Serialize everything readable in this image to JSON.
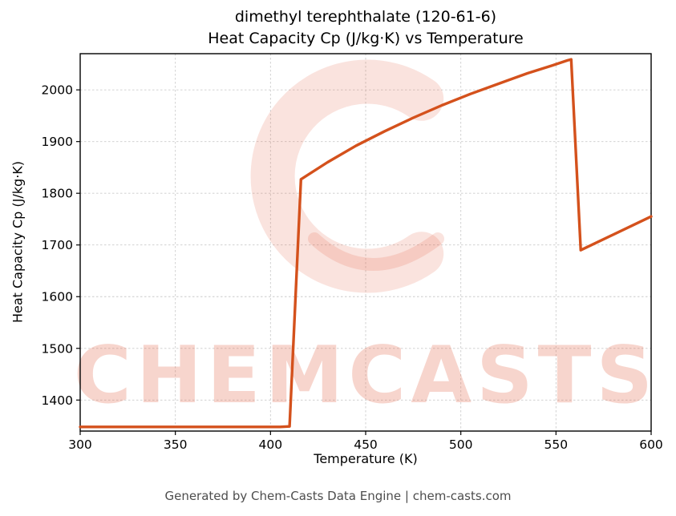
{
  "title": {
    "line1": "dimethyl terephthalate (120-61-6)",
    "line2": "Heat Capacity Cp (J/kg·K) vs Temperature"
  },
  "footer": "Generated by Chem-Casts Data Engine | chem-casts.com",
  "watermark": {
    "text": "CHEMCASTS",
    "logo": "chemcasts-c-logo",
    "color": "#e05a3c",
    "text_opacity": 0.25,
    "logo_opacity": 0.17
  },
  "chart_data": {
    "type": "line",
    "title": "dimethyl terephthalate (120-61-6) Heat Capacity Cp (J/kg·K) vs Temperature",
    "xlabel": "Temperature (K)",
    "ylabel": "Heat Capacity Cp (J/kg·K)",
    "xlim": [
      300,
      600
    ],
    "ylim": [
      1340,
      2070
    ],
    "xticks": [
      300,
      350,
      400,
      450,
      500,
      550,
      600
    ],
    "yticks": [
      1400,
      1500,
      1600,
      1700,
      1800,
      1900,
      2000
    ],
    "grid": true,
    "grid_color": "#cccccc",
    "line_color": "#d4511c",
    "series": [
      {
        "name": "Heat Capacity Cp",
        "points": [
          [
            300,
            1348
          ],
          [
            405,
            1348
          ],
          [
            410,
            1349
          ],
          [
            416,
            1827
          ],
          [
            430,
            1860
          ],
          [
            445,
            1892
          ],
          [
            460,
            1920
          ],
          [
            475,
            1946
          ],
          [
            490,
            1970
          ],
          [
            505,
            1992
          ],
          [
            520,
            2012
          ],
          [
            535,
            2032
          ],
          [
            548,
            2047
          ],
          [
            556,
            2057
          ],
          [
            558,
            2059
          ],
          [
            563,
            1690
          ],
          [
            600,
            1755
          ]
        ]
      }
    ]
  }
}
